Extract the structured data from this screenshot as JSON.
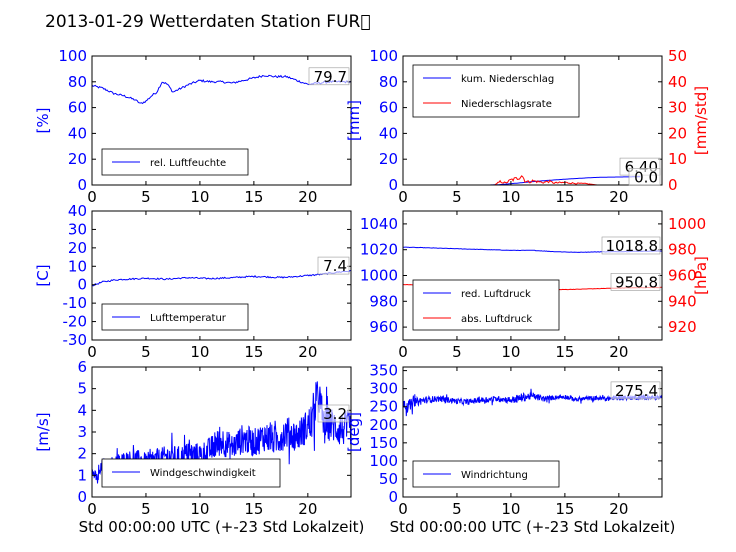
{
  "title": "2013-01-29 Wetterdaten Station FUR\u0000",
  "colors": {
    "primary": "#0000ff",
    "secondary": "#ff0000",
    "light": "#8080ff",
    "axis": "#000000"
  },
  "chart_data": [
    {
      "id": "humidity",
      "type": "line",
      "xlim": [
        0,
        24
      ],
      "xticks": [
        0,
        5,
        10,
        15,
        20
      ],
      "ylim": [
        0,
        100
      ],
      "yticks": [
        0,
        20,
        40,
        60,
        80,
        100
      ],
      "ylabel": "[%]",
      "xlabel": "",
      "legend_position": "lower-left",
      "annotation": "79.7",
      "series": [
        {
          "name": "rel. Luftfeuchte",
          "color": "#0000ff",
          "x": [
            0,
            1,
            2,
            3,
            4,
            4.5,
            5,
            5.5,
            6,
            6.5,
            7,
            7.5,
            8,
            8.5,
            9,
            10,
            11,
            12,
            13,
            14,
            15,
            16,
            17,
            18,
            19,
            20,
            21,
            22,
            23,
            24
          ],
          "y": [
            77,
            75,
            71,
            69,
            66,
            63,
            65,
            69,
            72,
            80,
            78,
            72,
            74,
            76,
            78,
            81,
            80,
            80,
            79,
            81,
            83,
            85,
            84,
            84,
            81,
            78,
            79,
            80,
            80,
            80
          ]
        }
      ]
    },
    {
      "id": "precip",
      "type": "line",
      "xlim": [
        0,
        24
      ],
      "xticks": [
        0,
        5,
        10,
        15,
        20
      ],
      "ylim": [
        0,
        100
      ],
      "yticks": [
        0,
        20,
        40,
        60,
        80,
        100
      ],
      "y2lim": [
        0,
        50
      ],
      "y2ticks": [
        0,
        10,
        20,
        30,
        40,
        50
      ],
      "ylabel": "[mm]",
      "y2label": "[mm/std]",
      "xlabel": "",
      "legend_position": "upper-left",
      "annotation": "6.40",
      "annotation2": "0.0",
      "series": [
        {
          "name": "kum. Niederschlag",
          "color": "#0000ff",
          "axis": "left",
          "x": [
            0,
            8,
            9,
            10,
            11,
            12,
            13,
            14,
            15,
            16,
            17,
            18,
            19,
            20,
            21,
            22
          ],
          "y": [
            0,
            0,
            0.3,
            1,
            1.8,
            2.6,
            3.3,
            3.9,
            4.5,
            5.0,
            5.5,
            5.9,
            6.1,
            6.2,
            6.3,
            6.4
          ]
        },
        {
          "name": "Niederschlagsrate",
          "color": "#ff0000",
          "axis": "right",
          "x": [
            0,
            8.5,
            9,
            9.5,
            10,
            10.5,
            11,
            11.3,
            11.7,
            12,
            12.5,
            13,
            13.5,
            14,
            15,
            16,
            17,
            18,
            24
          ],
          "y": [
            0,
            0,
            0.8,
            0.5,
            1.2,
            1.5,
            2.5,
            1.0,
            0.7,
            1.0,
            0.8,
            0.6,
            0.9,
            0.5,
            0.6,
            0.4,
            0.3,
            0,
            0
          ]
        }
      ]
    },
    {
      "id": "temperature",
      "type": "line",
      "xlim": [
        0,
        24
      ],
      "xticks": [
        0,
        5,
        10,
        15,
        20
      ],
      "ylim": [
        -30,
        40
      ],
      "yticks": [
        -30,
        -20,
        -10,
        0,
        10,
        20,
        30,
        40
      ],
      "ylabel": "[C]",
      "xlabel": "",
      "legend_position": "lower-left",
      "annotation": "7.4",
      "series": [
        {
          "name": "Lufttemperatur",
          "color": "#0000ff",
          "x": [
            0,
            0.5,
            1,
            2,
            3,
            4,
            5,
            6,
            7,
            8,
            9,
            10,
            11,
            12,
            13,
            14,
            15,
            16,
            17,
            18,
            19,
            20,
            21,
            22,
            23,
            24
          ],
          "y": [
            -0.5,
            0.5,
            1.5,
            2.5,
            3,
            3.2,
            3.5,
            3.3,
            3,
            3.5,
            3.8,
            3.5,
            3.3,
            3.6,
            3.8,
            4.2,
            4.5,
            4.3,
            4,
            4,
            4.5,
            5,
            5.5,
            6.2,
            7,
            7.4
          ]
        }
      ]
    },
    {
      "id": "pressure",
      "type": "line",
      "xlim": [
        0,
        24
      ],
      "xticks": [
        0,
        5,
        10,
        15,
        20
      ],
      "ylim": [
        950,
        1050
      ],
      "yticks": [
        960,
        980,
        1000,
        1020,
        1040
      ],
      "y2lim": [
        910,
        1010
      ],
      "y2ticks": [
        920,
        940,
        960,
        980,
        1000
      ],
      "ylabel": "",
      "y2label": "[hPa]",
      "xlabel": "",
      "legend_position": "lower-left",
      "annotation": "1018.8",
      "annotation2": "950.8",
      "series": [
        {
          "name": "red. Luftdruck",
          "color": "#0000ff",
          "axis": "left",
          "x": [
            0,
            2,
            4,
            6,
            8,
            10,
            12,
            14,
            16,
            18,
            20,
            22,
            24
          ],
          "y": [
            1022,
            1021.5,
            1021,
            1020.5,
            1020,
            1019.5,
            1019.5,
            1018.5,
            1018,
            1018.3,
            1018.5,
            1018.8,
            1019
          ]
        },
        {
          "name": "abs. Luftdruck",
          "color": "#ff0000",
          "axis": "right",
          "x": [
            0,
            2,
            4,
            6,
            8,
            10,
            12,
            14,
            16,
            18,
            20,
            22,
            24
          ],
          "y": [
            953,
            952.5,
            952,
            951.5,
            951,
            950.5,
            950,
            949,
            949.3,
            949.8,
            950.3,
            950.6,
            950.8
          ]
        }
      ]
    },
    {
      "id": "windspeed",
      "type": "line",
      "xlim": [
        0,
        24
      ],
      "xticks": [
        0,
        5,
        10,
        15,
        20
      ],
      "ylim": [
        0,
        6
      ],
      "yticks": [
        0,
        1,
        2,
        3,
        4,
        5,
        6
      ],
      "ylabel": "[m/s]",
      "xlabel": "Std 00:00:00 UTC (+-23 Std Lokalzeit)",
      "legend_position": "lower-center",
      "annotation": "3.2",
      "series": [
        {
          "name": "Windgeschwindigkeit",
          "color": "#0000ff",
          "x": [
            0,
            0.5,
            1,
            1.5,
            2,
            3,
            4,
            5,
            6,
            7,
            8,
            9,
            10,
            11,
            12,
            13,
            14,
            15,
            16,
            17,
            18,
            19,
            20,
            20.5,
            21,
            21.5,
            22,
            23,
            24
          ],
          "y": [
            1.2,
            0.8,
            1.5,
            1.3,
            1.6,
            1.7,
            1.8,
            1.6,
            1.7,
            1.9,
            1.8,
            2.0,
            1.9,
            2.2,
            2.6,
            2.3,
            2.7,
            2.5,
            2.8,
            2.6,
            3.0,
            2.8,
            3.3,
            3.6,
            4.8,
            3.2,
            3.4,
            3.1,
            3.2
          ],
          "noise": [
            0.2,
            0.3,
            0.35,
            0.4,
            0.35,
            0.4,
            0.4,
            0.45,
            0.5,
            0.5,
            0.55,
            0.55,
            0.6,
            0.6,
            0.7,
            0.6,
            0.7,
            0.65,
            0.7,
            0.7,
            0.75,
            0.7,
            0.8,
            0.9,
            0.9,
            0.9,
            0.8,
            0.8,
            0.8
          ]
        },
        {
          "name": "",
          "color": "#8080ff",
          "x": [
            2,
            3,
            4,
            5,
            6,
            7,
            8,
            9,
            10,
            11
          ],
          "y": [
            1.1,
            1.0,
            1.2,
            1.0,
            1.3,
            1.2,
            1.3,
            1.4,
            1.2,
            1.3
          ],
          "noise": [
            0.3,
            0.3,
            0.3,
            0.3,
            0.3,
            0.3,
            0.3,
            0.3,
            0.3,
            0.3
          ]
        }
      ]
    },
    {
      "id": "winddir",
      "type": "line",
      "xlim": [
        0,
        24
      ],
      "xticks": [
        0,
        5,
        10,
        15,
        20
      ],
      "ylim": [
        0,
        360
      ],
      "yticks": [
        0,
        50,
        100,
        150,
        200,
        250,
        300,
        350
      ],
      "ylabel": "[deg]",
      "xlabel": "Std 00:00:00 UTC (+-23 Std Lokalzeit)",
      "legend_position": "lower-left",
      "annotation": "275.4",
      "series": [
        {
          "name": "Windrichtung",
          "color": "#0000ff",
          "x": [
            0,
            0.5,
            1,
            2,
            3,
            4,
            5,
            6,
            7,
            8,
            9,
            10,
            11,
            12,
            13,
            14,
            15,
            16,
            17,
            18,
            19,
            20,
            21,
            22,
            23,
            24
          ],
          "y": [
            265,
            250,
            262,
            268,
            272,
            270,
            265,
            263,
            268,
            270,
            272,
            268,
            275,
            280,
            272,
            275,
            278,
            270,
            273,
            274,
            272,
            276,
            275,
            276,
            275,
            275
          ],
          "noise": [
            15,
            20,
            12,
            10,
            8,
            8,
            8,
            8,
            8,
            8,
            8,
            10,
            12,
            10,
            8,
            6,
            6,
            6,
            6,
            6,
            6,
            6,
            6,
            6,
            6,
            6
          ]
        }
      ]
    }
  ]
}
